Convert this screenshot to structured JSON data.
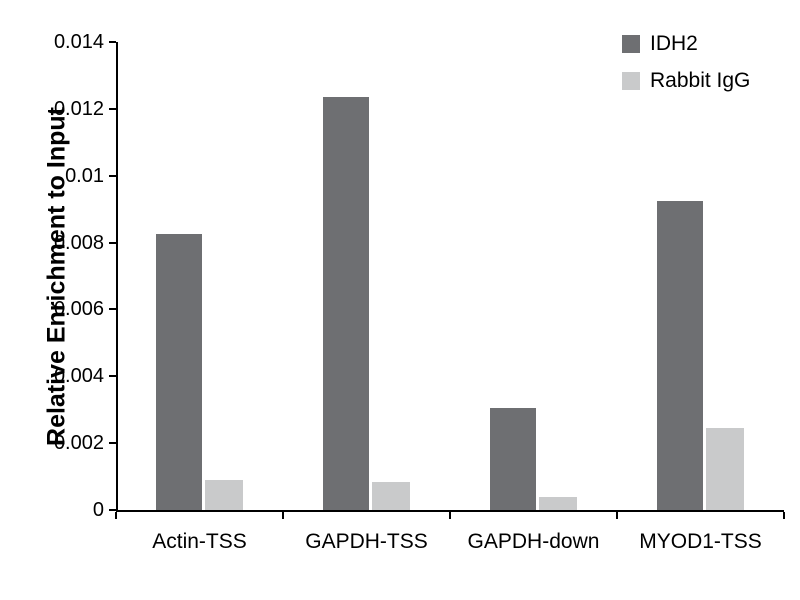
{
  "chart_data": {
    "type": "bar",
    "title": "",
    "ylabel": "Relative Enrichment to Input",
    "xlabel": "",
    "categories": [
      "Actin-TSS",
      "GAPDH-TSS",
      "GAPDH-down",
      "MYOD1-TSS"
    ],
    "series": [
      {
        "name": "IDH2",
        "color": "#6e6f72",
        "values": [
          0.00825,
          0.01235,
          0.00305,
          0.00925
        ]
      },
      {
        "name": "Rabbit IgG",
        "color": "#c9cacb",
        "values": [
          0.0009,
          0.00085,
          0.0004,
          0.00245
        ]
      }
    ],
    "ylim": [
      0,
      0.014
    ],
    "yticks": [
      0,
      0.002,
      0.004,
      0.006,
      0.008,
      0.01,
      0.012,
      0.014
    ],
    "ytick_labels": [
      "0",
      "0.002",
      "0.004",
      "0.006",
      "0.008",
      "0.01",
      "0.012",
      "0.014"
    ],
    "grid": false,
    "legend_position": "top-right",
    "axis_color": "#000000",
    "background_color": "#ffffff"
  }
}
